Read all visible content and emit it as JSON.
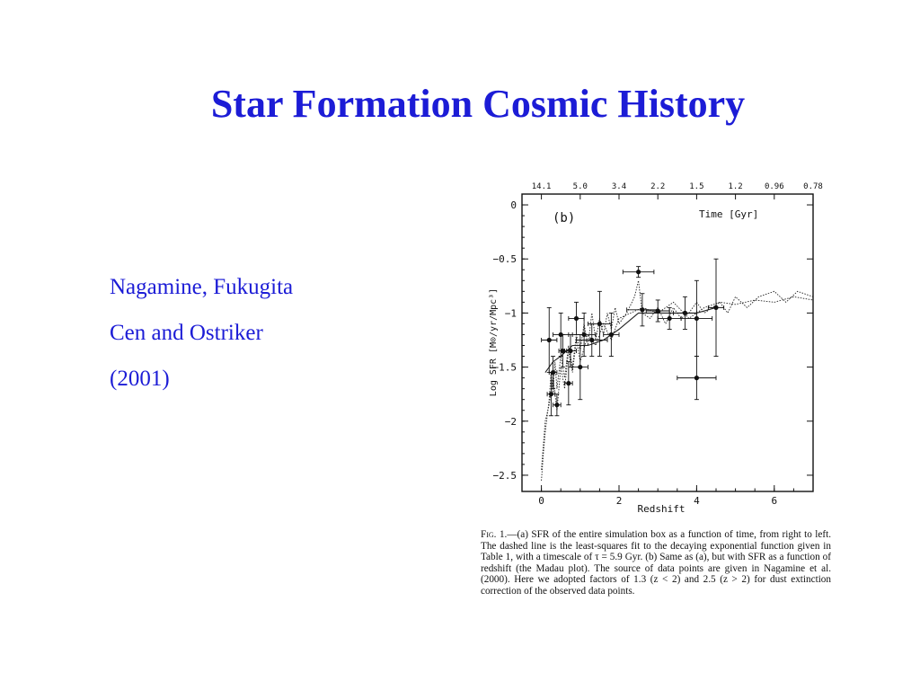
{
  "slide": {
    "title": "Star Formation Cosmic History",
    "authors": [
      "Nagamine, Fukugita",
      "Cen and Ostriker",
      "(2001)"
    ]
  },
  "caption": {
    "fig_label": "Fig.",
    "number": "1.",
    "text": "—(a) SFR of the entire simulation box as a function of time, from right to left. The dashed line is the least-squares fit to the decaying exponential function given in Table 1, with a timescale of τ = 5.9 Gyr. (b) Same as (a), but with SFR as a function of redshift (the Madau plot). The source of data points are given in Nagamine et al. (2000). Here we adopted factors of 1.3 (z < 2) and 2.5 (z > 2) for dust extinction correction of the observed data points."
  },
  "chart_data": {
    "type": "scatter",
    "panel_label": "(b)",
    "xlabel": "Redshift",
    "ylabel": "Log SFR [M⊙/yr/Mpc³]",
    "top_axis_label": "Time [Gyr]",
    "xlim": [
      -0.5,
      7
    ],
    "ylim": [
      -2.65,
      0.1
    ],
    "x_ticks": [
      0,
      2,
      4,
      6
    ],
    "x_tick_labels": [
      "0",
      "2",
      "4",
      "6"
    ],
    "y_ticks": [
      0,
      -0.5,
      -1,
      -1.5,
      -2,
      -2.5
    ],
    "y_tick_labels": [
      "0",
      "−0.5",
      "−1",
      "−1.5",
      "−2",
      "−2.5"
    ],
    "top_ticks": [
      {
        "z": 0.0,
        "label": "14.1"
      },
      {
        "z": 1.0,
        "label": "5.0"
      },
      {
        "z": 2.0,
        "label": "3.4"
      },
      {
        "z": 3.0,
        "label": "2.2"
      },
      {
        "z": 4.0,
        "label": "1.5"
      },
      {
        "z": 5.0,
        "label": "1.2"
      },
      {
        "z": 6.0,
        "label": "0.96"
      },
      {
        "z": 7.0,
        "label": "0.78"
      }
    ],
    "grid": false,
    "series": [
      {
        "style": "dotted-noisy",
        "x": [
          0.0,
          0.05,
          0.1,
          0.15,
          0.2,
          0.25,
          0.3,
          0.35,
          0.4,
          0.5,
          0.6,
          0.7,
          0.8,
          0.9,
          1.0,
          1.1,
          1.2,
          1.3,
          1.4,
          1.5,
          1.6,
          1.7,
          1.8,
          1.9,
          2.0,
          2.2,
          2.4,
          2.5,
          2.6,
          2.8,
          3.0,
          3.2,
          3.4,
          3.6,
          3.8,
          4.0,
          4.2,
          4.4,
          4.6,
          4.8,
          5.0,
          5.3,
          5.6,
          6.0,
          6.3,
          6.6,
          7.0
        ],
        "y": [
          -2.55,
          -2.3,
          -2.1,
          -1.95,
          -1.8,
          -1.55,
          -1.75,
          -1.45,
          -1.7,
          -1.4,
          -1.6,
          -1.3,
          -1.5,
          -1.2,
          -1.35,
          -1.1,
          -1.3,
          -1.0,
          -1.25,
          -1.05,
          -1.2,
          -1.0,
          -1.15,
          -0.95,
          -1.1,
          -1.0,
          -0.85,
          -0.7,
          -1.0,
          -1.05,
          -0.95,
          -1.1,
          -0.95,
          -1.05,
          -1.0,
          -0.9,
          -1.0,
          -0.95,
          -0.9,
          -1.0,
          -0.85,
          -0.95,
          -0.85,
          -0.8,
          -0.9,
          -0.8,
          -0.85
        ]
      },
      {
        "style": "dotted-noisy",
        "x": [
          0.0,
          0.1,
          0.2,
          0.3,
          0.4,
          0.5,
          0.6,
          0.7,
          0.8,
          0.9,
          1.0,
          1.2,
          1.4,
          1.6,
          1.8,
          2.0,
          2.3,
          2.6,
          3.0,
          3.4,
          3.8,
          4.2,
          4.6,
          5.0,
          5.5,
          6.0,
          6.5,
          7.0
        ],
        "y": [
          -2.45,
          -2.0,
          -1.85,
          -1.6,
          -1.9,
          -1.5,
          -1.7,
          -1.35,
          -1.55,
          -1.25,
          -1.45,
          -1.2,
          -1.3,
          -1.1,
          -1.25,
          -1.05,
          -1.0,
          -0.95,
          -1.0,
          -0.9,
          -1.05,
          -0.95,
          -0.9,
          -0.92,
          -0.88,
          -0.9,
          -0.85,
          -0.88
        ]
      },
      {
        "style": "solid",
        "x": [
          0.1,
          0.3,
          0.5,
          0.8,
          1.2,
          1.6,
          2.0,
          2.5,
          3.0,
          3.5,
          4.0,
          4.5
        ],
        "y": [
          -1.55,
          -1.45,
          -1.4,
          -1.3,
          -1.3,
          -1.25,
          -1.15,
          -1.0,
          -1.0,
          -1.0,
          -1.0,
          -0.95
        ]
      }
    ],
    "points": [
      {
        "x": 0.2,
        "y": -1.25,
        "xerr": 0.2,
        "yerr": 0.3
      },
      {
        "x": 0.25,
        "y": -1.75,
        "xerr": 0.1,
        "yerr": 0.2
      },
      {
        "x": 0.3,
        "y": -1.55,
        "xerr": 0.1,
        "yerr": 0.15
      },
      {
        "x": 0.4,
        "y": -1.85,
        "xerr": 0.1,
        "yerr": 0.1
      },
      {
        "x": 0.5,
        "y": -1.2,
        "xerr": 0.2,
        "yerr": 0.2
      },
      {
        "x": 0.55,
        "y": -1.35,
        "xerr": 0.1,
        "yerr": 0.15
      },
      {
        "x": 0.7,
        "y": -1.65,
        "xerr": 0.1,
        "yerr": 0.2
      },
      {
        "x": 0.75,
        "y": -1.35,
        "xerr": 0.15,
        "yerr": 0.15
      },
      {
        "x": 0.9,
        "y": -1.05,
        "xerr": 0.2,
        "yerr": 0.15
      },
      {
        "x": 1.0,
        "y": -1.5,
        "xerr": 0.2,
        "yerr": 0.3
      },
      {
        "x": 1.1,
        "y": -1.2,
        "xerr": 0.3,
        "yerr": 0.2
      },
      {
        "x": 1.3,
        "y": -1.25,
        "xerr": 0.4,
        "yerr": 0.15
      },
      {
        "x": 1.5,
        "y": -1.1,
        "xerr": 0.3,
        "yerr": 0.3
      },
      {
        "x": 1.8,
        "y": -1.2,
        "xerr": 0.2,
        "yerr": 0.2
      },
      {
        "x": 2.5,
        "y": -0.62,
        "xerr": 0.4,
        "yerr": 0.05
      },
      {
        "x": 2.6,
        "y": -0.97,
        "xerr": 0.4,
        "yerr": 0.15
      },
      {
        "x": 3.0,
        "y": -0.98,
        "xerr": 0.3,
        "yerr": 0.1
      },
      {
        "x": 3.3,
        "y": -1.05,
        "xerr": 0.3,
        "yerr": 0.1
      },
      {
        "x": 3.7,
        "y": -1.0,
        "xerr": 0.3,
        "yerr": 0.15
      },
      {
        "x": 4.0,
        "y": -1.6,
        "xerr": 0.5,
        "yerr": 0.2
      },
      {
        "x": 4.0,
        "y": -1.05,
        "xerr": 0.4,
        "yerr": 0.35
      },
      {
        "x": 4.5,
        "y": -0.95,
        "xerr": 0.2,
        "yerr": 0.45
      }
    ]
  }
}
